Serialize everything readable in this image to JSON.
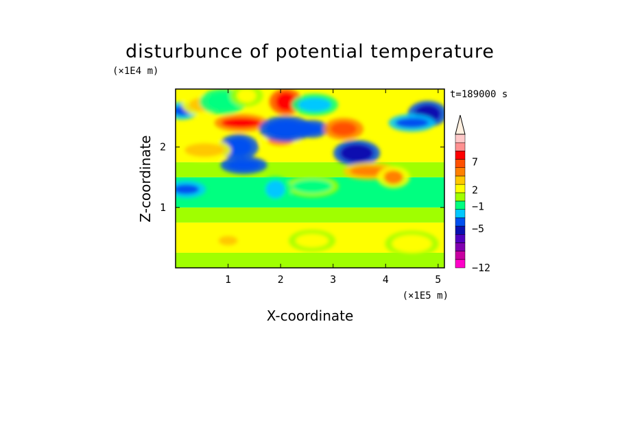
{
  "chart_data": {
    "type": "heatmap",
    "title": "disturbunce of potential temperature",
    "xlabel": "X-coordinate",
    "ylabel": "Z-coordinate",
    "x_unit": "(×1E5 m)",
    "y_unit": "(×1E4 m)",
    "time_label": "t=189000 s",
    "xlim": [
      0,
      5.12
    ],
    "ylim": [
      0,
      2.96
    ],
    "x_ticks": [
      1,
      2,
      3,
      4,
      5
    ],
    "x_tick_labels": [
      "1",
      "2",
      "3",
      "4",
      "5"
    ],
    "y_ticks": [
      1,
      2
    ],
    "y_tick_labels": [
      "1",
      "2"
    ],
    "colorbar": {
      "colors": [
        "#ff00c8",
        "#c800a0",
        "#8000b0",
        "#5000c0",
        "#0a10b0",
        "#0050f0",
        "#00c8ff",
        "#00ff80",
        "#a0ff00",
        "#ffff00",
        "#ffc800",
        "#ff8000",
        "#ff5000",
        "#ff0000",
        "#ff9090",
        "#ffc8c8",
        "#fff0e0"
      ],
      "tick_labels": [
        "7",
        "2",
        "-1",
        "-5",
        "-12"
      ],
      "tick_levels": [
        7,
        2,
        -1,
        -5,
        -12
      ],
      "level_min": -12,
      "level_max": 12,
      "extend": "max"
    },
    "field_description_blobs": [
      {
        "x": 0.12,
        "z": 2.6,
        "level": -4
      },
      {
        "x": 0.5,
        "z": 2.7,
        "level": 3
      },
      {
        "x": 0.9,
        "z": 2.75,
        "level": -2
      },
      {
        "x": 1.25,
        "z": 2.4,
        "level": 7
      },
      {
        "x": 1.35,
        "z": 2.85,
        "level": 2
      },
      {
        "x": 1.2,
        "z": 2.0,
        "level": -5
      },
      {
        "x": 1.3,
        "z": 1.7,
        "level": -5
      },
      {
        "x": 0.55,
        "z": 1.95,
        "level": 3
      },
      {
        "x": 2.1,
        "z": 2.75,
        "level": 8
      },
      {
        "x": 2.0,
        "z": 2.1,
        "level": 4
      },
      {
        "x": 2.65,
        "z": 2.7,
        "level": -3
      },
      {
        "x": 2.1,
        "z": 2.3,
        "level": -5
      },
      {
        "x": 2.6,
        "z": 2.3,
        "level": -5
      },
      {
        "x": 3.2,
        "z": 2.3,
        "level": 6
      },
      {
        "x": 3.45,
        "z": 1.9,
        "level": -6
      },
      {
        "x": 3.7,
        "z": 1.6,
        "level": 5
      },
      {
        "x": 4.15,
        "z": 1.5,
        "level": 4
      },
      {
        "x": 4.8,
        "z": 2.55,
        "level": -6
      },
      {
        "x": 4.5,
        "z": 2.4,
        "level": -4
      },
      {
        "x": 2.6,
        "z": 1.35,
        "level": -1
      },
      {
        "x": 1.9,
        "z": 1.3,
        "level": -3
      },
      {
        "x": 0.2,
        "z": 1.3,
        "level": -4
      },
      {
        "x": 2.6,
        "z": 0.45,
        "level": 2
      },
      {
        "x": 4.5,
        "z": 0.4,
        "level": 2
      },
      {
        "x": 1.0,
        "z": 0.45,
        "level": 3
      }
    ]
  }
}
